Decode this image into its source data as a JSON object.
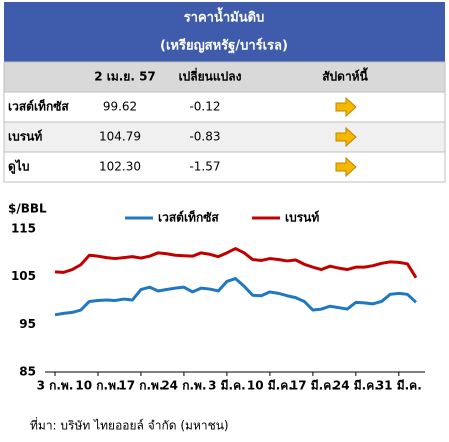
{
  "header": {
    "title": "ราคาน้ำมันดิบ",
    "subtitle": "(เหรียญสหรัฐ/บาร์เรล)"
  },
  "table": {
    "columns": [
      "2 เม.ย. 57",
      "เปลี่ยนแปลง",
      "สัปดาห์นี้"
    ],
    "rows": [
      [
        "เวสต์เท็กซัส",
        "99.62",
        "-0.12"
      ],
      [
        "เบรนท์",
        "104.79",
        "-0.83"
      ],
      [
        "ดูไบ",
        "102.30",
        "-1.57"
      ]
    ]
  },
  "chart_data": {
    "type": "line",
    "y_label": "$/BBL",
    "categories": [
      "3 ก.พ.",
      null,
      null,
      null,
      null,
      "10 ก.พ.",
      null,
      null,
      null,
      null,
      "17 ก.พ.",
      null,
      null,
      null,
      null,
      "24 ก.พ.",
      null,
      null,
      null,
      null,
      "3 มี.ค.",
      null,
      null,
      null,
      null,
      "10 มี.ค.",
      null,
      null,
      null,
      null,
      "17 มี.ค.",
      null,
      null,
      null,
      null,
      "24 มี.ค.",
      null,
      null,
      null,
      null,
      "31 มี.ค.",
      null,
      null
    ],
    "series": [
      {
        "name": "เวสต์เท็กซัส",
        "color": "#1f78c1",
        "values": [
          97.0,
          97.3,
          97.5,
          98.0,
          99.8,
          100.0,
          100.1,
          100.0,
          100.3,
          100.1,
          102.3,
          102.8,
          102.0,
          102.3,
          102.6,
          102.8,
          101.8,
          102.6,
          102.4,
          102.0,
          104.0,
          104.6,
          103.0,
          101.1,
          101.0,
          101.8,
          101.5,
          101.0,
          100.6,
          99.8,
          98.0,
          98.2,
          98.8,
          98.5,
          98.2,
          99.6,
          99.5,
          99.3,
          99.8,
          101.3,
          101.5,
          101.3,
          99.62
        ]
      },
      {
        "name": "เบรนท์",
        "color": "#c00000",
        "values": [
          106.0,
          105.9,
          106.5,
          107.5,
          109.5,
          109.3,
          109.0,
          108.8,
          109.0,
          109.2,
          108.9,
          109.3,
          110.0,
          109.8,
          109.5,
          109.4,
          109.3,
          110.0,
          109.7,
          109.2,
          110.0,
          110.9,
          110.0,
          108.6,
          108.4,
          108.8,
          108.6,
          108.3,
          108.5,
          107.6,
          107.0,
          106.5,
          107.2,
          106.8,
          106.5,
          107.0,
          107.0,
          107.3,
          107.8,
          108.1,
          108.0,
          107.7,
          104.79
        ]
      }
    ],
    "ylim": [
      85,
      115
    ],
    "yticks": [
      85,
      95,
      105,
      115
    ],
    "legend": "top"
  },
  "source": "ที่มา: บริษัท ไทยออยล์ จำกัด (มหาชน)"
}
